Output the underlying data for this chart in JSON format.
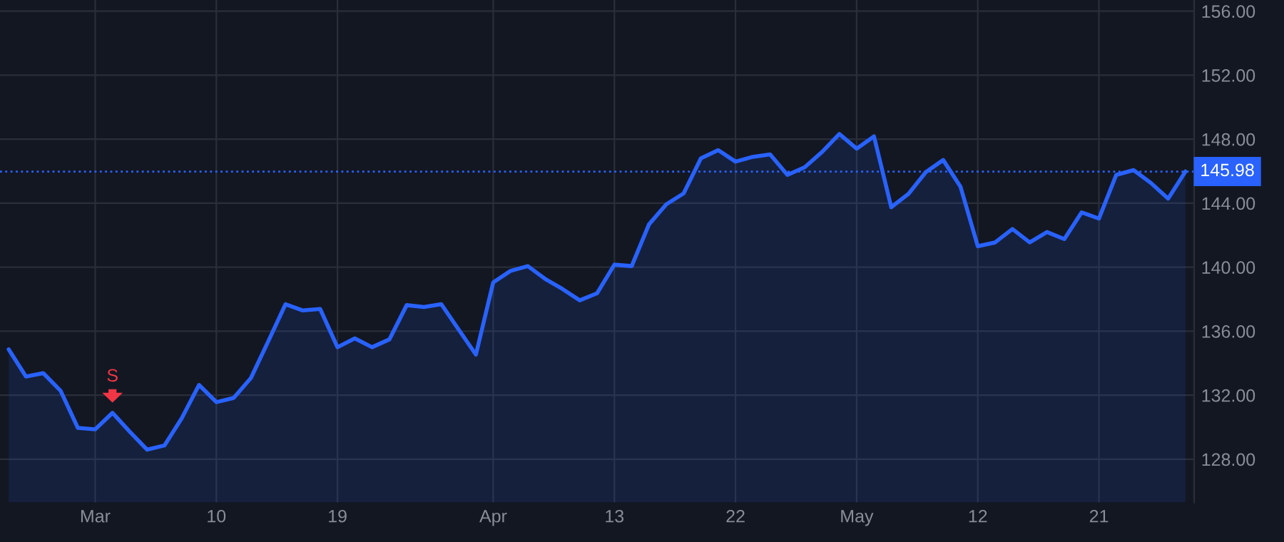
{
  "chart_data": {
    "type": "area",
    "categories": [
      null,
      null,
      null,
      null,
      null,
      "Mar",
      null,
      null,
      null,
      null,
      null,
      null,
      "10",
      null,
      null,
      null,
      null,
      null,
      null,
      "19",
      null,
      null,
      null,
      null,
      null,
      null,
      null,
      null,
      "Apr",
      null,
      null,
      null,
      null,
      null,
      null,
      "13",
      null,
      null,
      null,
      null,
      null,
      null,
      "22",
      null,
      null,
      null,
      null,
      null,
      null,
      "May",
      null,
      null,
      null,
      null,
      null,
      null,
      "12",
      null,
      null,
      null,
      null,
      null,
      null,
      "21",
      null,
      null,
      null,
      null,
      null
    ],
    "series": [
      {
        "color": "#2962ff",
        "values": [
          134.87,
          133.17,
          133.38,
          132.28,
          129.96,
          129.87,
          130.9,
          129.72,
          128.6,
          128.86,
          130.56,
          132.64,
          131.57,
          131.83,
          133.08,
          135.37,
          137.69,
          137.3,
          137.39,
          135.0,
          135.55,
          135.0,
          135.49,
          137.63,
          137.51,
          137.69,
          136.11,
          134.54,
          139.05,
          139.77,
          140.07,
          139.27,
          138.64,
          137.93,
          138.37,
          140.16,
          140.07,
          142.68,
          143.93,
          144.61,
          146.81,
          147.32,
          146.6,
          146.9,
          147.05,
          145.77,
          146.25,
          147.2,
          148.33,
          147.41,
          148.18,
          143.75,
          144.59,
          145.95,
          146.7,
          145.03,
          141.31,
          141.55,
          142.39,
          141.55,
          142.2,
          141.76,
          143.43,
          143.04,
          145.77,
          146.07,
          145.27,
          144.29,
          145.98
        ]
      }
    ],
    "ylim": [
      125.3,
      156.7
    ],
    "yticks": [
      {
        "value": 128,
        "label": "128.00"
      },
      {
        "value": 132,
        "label": "132.00"
      },
      {
        "value": 136,
        "label": "136.00"
      },
      {
        "value": 140,
        "label": "140.00"
      },
      {
        "value": 144,
        "label": "144.00"
      },
      {
        "value": 148,
        "label": "148.00"
      },
      {
        "value": 152,
        "label": "152.00"
      },
      {
        "value": 156,
        "label": "156.00"
      }
    ],
    "grid": true,
    "ref_lines": [
      {
        "axis": "y",
        "value": 145.98,
        "label": "145.98",
        "color": "#2962ff",
        "line_style": "dotted"
      }
    ],
    "annotations": [
      {
        "text": "S",
        "y": 130.9
      }
    ]
  }
}
